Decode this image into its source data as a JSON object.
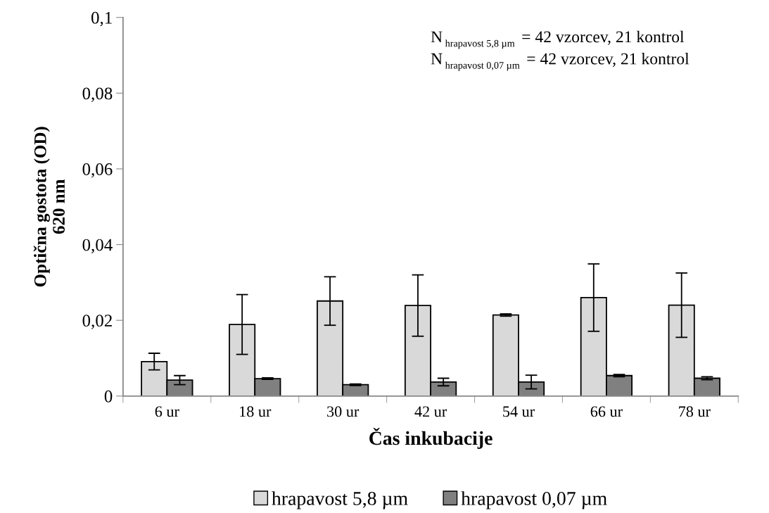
{
  "chart_data": {
    "type": "bar",
    "xlabel": "Čas inkubacije",
    "ylabel": "Optična gostota (OD)\n620 nm",
    "categories": [
      "6 ur",
      "18 ur",
      "30 ur",
      "42 ur",
      "54 ur",
      "66 ur",
      "78 ur"
    ],
    "series": [
      {
        "name": "hrapavost 5,8 µm",
        "color": "#d9d9d9",
        "values": [
          0.0091,
          0.0189,
          0.0251,
          0.0239,
          0.0214,
          0.026,
          0.024
        ],
        "errors": [
          0.0022,
          0.0079,
          0.0064,
          0.0081,
          0.0003,
          0.0089,
          0.0085
        ]
      },
      {
        "name": "hrapavost 0,07 µm",
        "color": "#808080",
        "values": [
          0.0042,
          0.0046,
          0.003,
          0.0037,
          0.0037,
          0.0054,
          0.0047
        ],
        "errors": [
          0.0012,
          0.0002,
          0.0002,
          0.001,
          0.0018,
          0.0003,
          0.0004
        ]
      }
    ],
    "ylim": [
      0,
      0.1
    ],
    "yticks": [
      0,
      {
        "value": 0.02,
        "label": "0,02"
      },
      {
        "value": 0.04,
        "label": "0,04"
      },
      {
        "value": 0.06,
        "label": "0,06"
      },
      {
        "value": 0.08,
        "label": "0,08"
      },
      {
        "value": 0.1,
        "label": "0,1"
      }
    ],
    "annotations": [
      "N$_{hrapavost 5,8 µm}$ = 42 vzorcev, 21 kontrol",
      "N$_{hrapavost 0,07 µm}$ = 42 vzorcev, 21 kontrol"
    ],
    "legend": "bottom",
    "grid": false
  }
}
